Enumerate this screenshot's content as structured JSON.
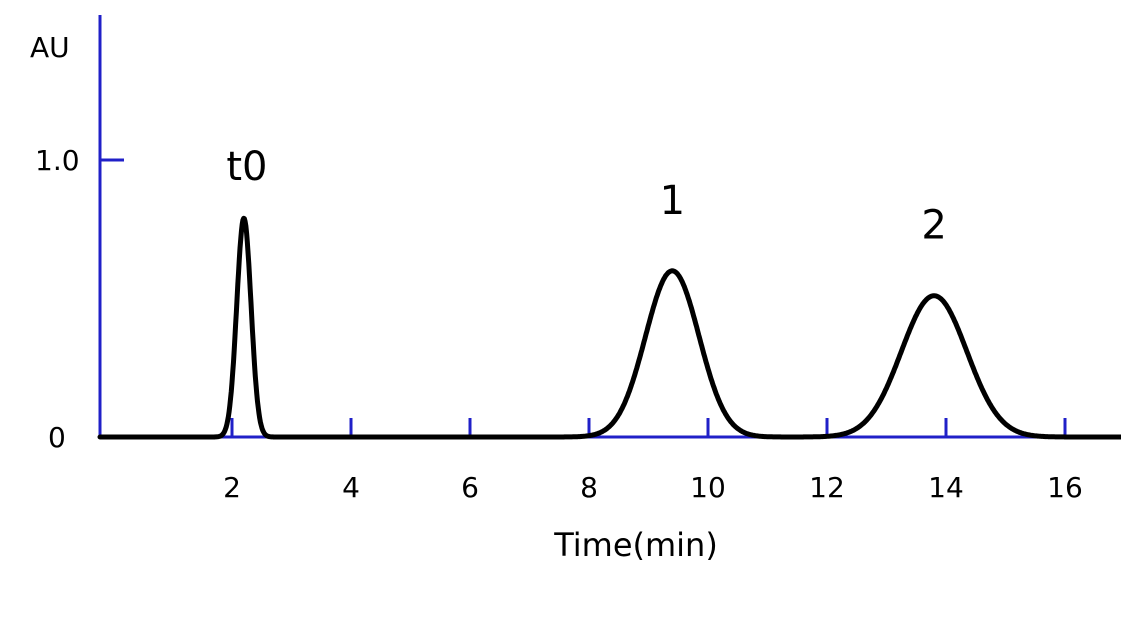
{
  "chart_data": {
    "type": "line",
    "ylabel": "AU",
    "xlabel": "Time(min)",
    "xlim": [
      0,
      17
    ],
    "ylim": [
      0,
      1.1
    ],
    "x_ticks": [
      2,
      4,
      6,
      8,
      10,
      12,
      14,
      16
    ],
    "y_ticks": [
      {
        "value": 0,
        "label": "0"
      },
      {
        "value": 1.0,
        "label": "1.0"
      }
    ],
    "colors": {
      "axis": "#2020c8",
      "trace": "#000000"
    },
    "peaks": [
      {
        "label": "t0",
        "time": 2.2,
        "height": 0.79,
        "width": 0.12
      },
      {
        "label": "1",
        "time": 9.4,
        "height": 0.6,
        "width": 0.45
      },
      {
        "label": "2",
        "time": 13.8,
        "height": 0.51,
        "width": 0.55
      }
    ]
  }
}
